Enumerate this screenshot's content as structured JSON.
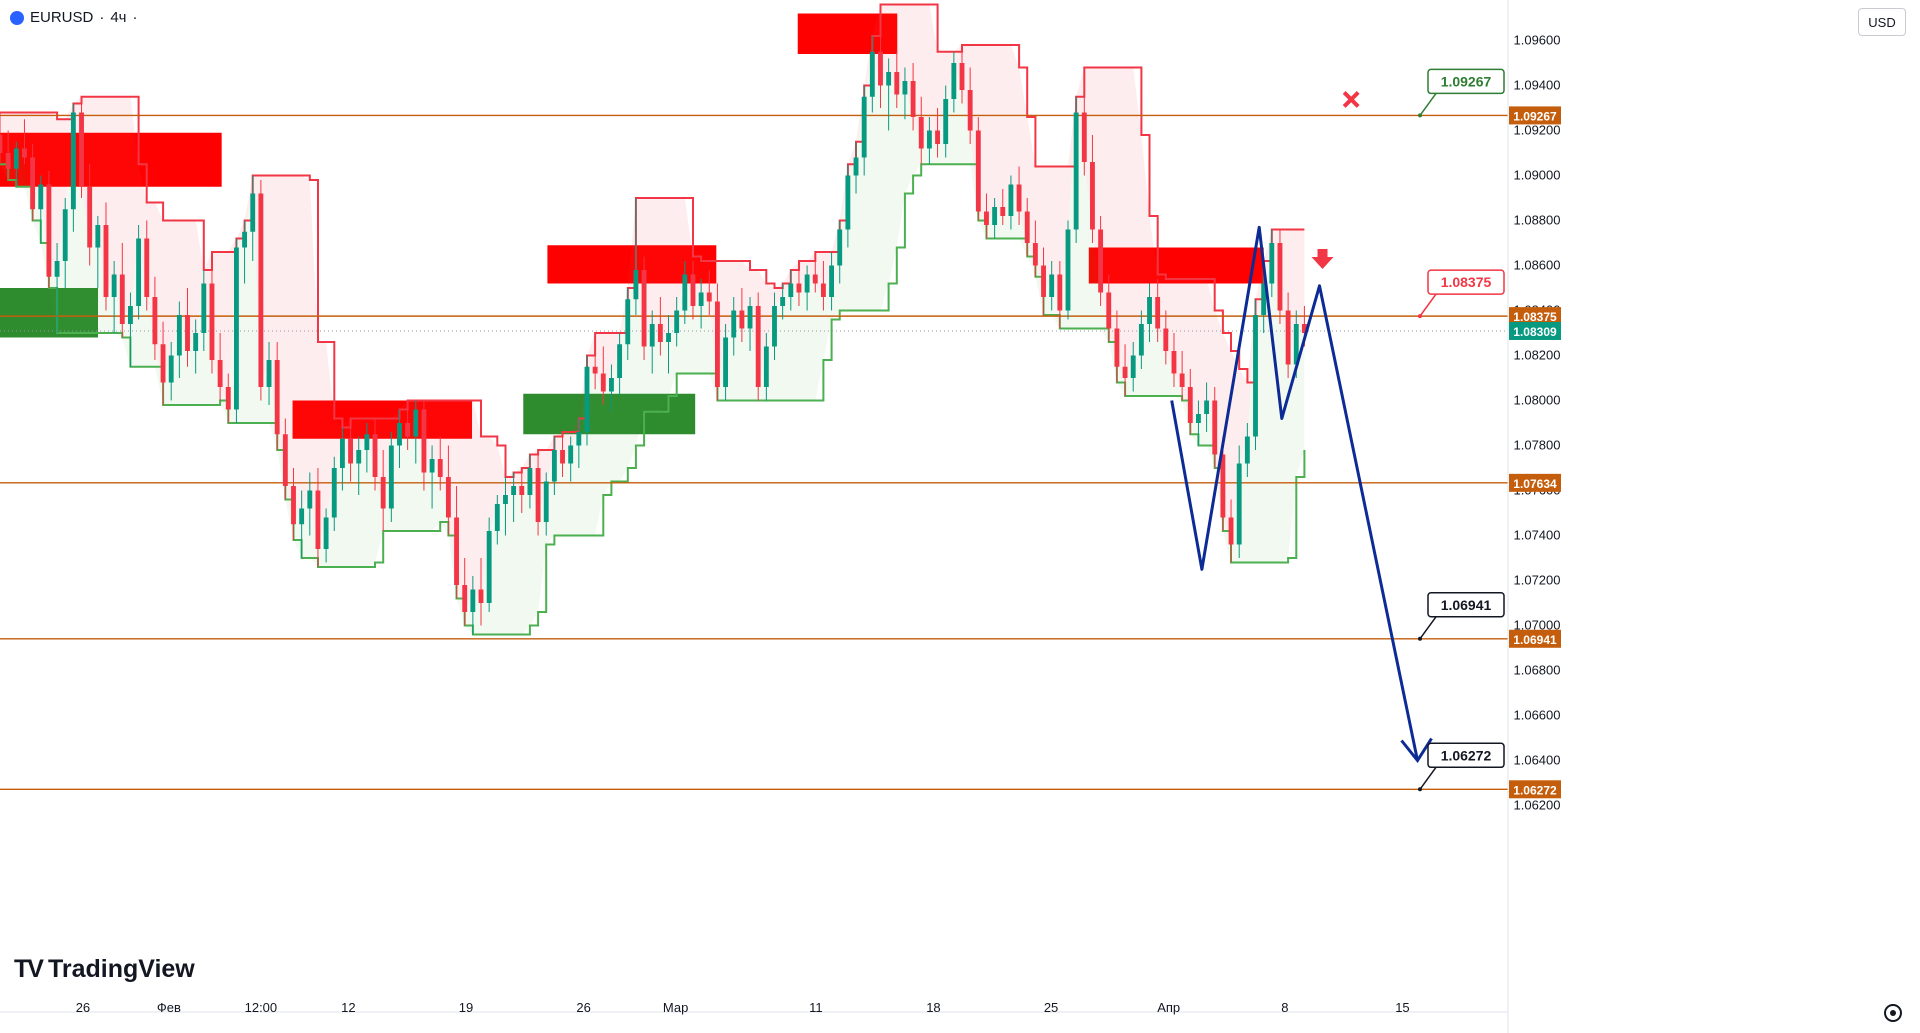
{
  "header": {
    "symbol": "EURUSD",
    "timeframe": "4ч",
    "currency": "USD"
  },
  "brand": {
    "logo_text": "TradingView"
  },
  "colors": {
    "price_line": "#c45e0c",
    "bear": "#f23645",
    "bull": "#089981",
    "path": "#0d2b95",
    "zone_red": "#ff0000",
    "zone_green": "#2e8b2e",
    "stop_line": "#f23645",
    "trail_line": "#4caf50"
  },
  "chart_data": {
    "type": "candlestick",
    "symbol": "EURUSD",
    "interval": "4ч",
    "ylim": [
      1.0618,
      1.0978
    ],
    "y_ticks": [
      "1.09600",
      "1.09400",
      "1.09200",
      "1.09000",
      "1.08800",
      "1.08600",
      "1.08400",
      "1.08200",
      "1.08000",
      "1.07800",
      "1.07600",
      "1.07400",
      "1.07200",
      "1.07000",
      "1.06800",
      "1.06600",
      "1.06400",
      "1.06200"
    ],
    "x_ticks": [
      {
        "label": "26",
        "t": 0.055
      },
      {
        "label": "Фев",
        "t": 0.112
      },
      {
        "label": "12:00",
        "t": 0.173
      },
      {
        "label": "12",
        "t": 0.231
      },
      {
        "label": "19",
        "t": 0.309
      },
      {
        "label": "26",
        "t": 0.387
      },
      {
        "label": "Мар",
        "t": 0.448
      },
      {
        "label": "11",
        "t": 0.541
      },
      {
        "label": "18",
        "t": 0.619
      },
      {
        "label": "25",
        "t": 0.697
      },
      {
        "label": "Апр",
        "t": 0.775
      },
      {
        "label": "8",
        "t": 0.852
      },
      {
        "label": "15",
        "t": 0.93
      }
    ],
    "price_levels": [
      {
        "value": 1.09267,
        "label": "1.09267",
        "callout": "1.09267",
        "callout_color": "#2e7d32"
      },
      {
        "value": 1.08375,
        "label": "1.08375",
        "callout": "1.08375",
        "callout_color": "#f23645"
      },
      {
        "value": 1.07634,
        "label": "1.07634",
        "callout": "",
        "callout_color": ""
      },
      {
        "value": 1.06941,
        "label": "1.06941",
        "callout": "1.06941",
        "callout_color": "#131722"
      },
      {
        "value": 1.06272,
        "label": "1.06272",
        "callout": "1.06272",
        "callout_color": "#131722"
      }
    ],
    "last_price": {
      "value": 1.08309,
      "label": "1.08309"
    },
    "path_points": [
      {
        "t": 0.777,
        "v": 1.08
      },
      {
        "t": 0.797,
        "v": 1.0725
      },
      {
        "t": 0.835,
        "v": 1.0877
      },
      {
        "t": 0.85,
        "v": 1.0792
      },
      {
        "t": 0.875,
        "v": 1.0851
      },
      {
        "t": 0.94,
        "v": 1.064
      }
    ],
    "supply_zones": [
      {
        "t0": 0.0,
        "t1": 0.147,
        "v0": 1.0895,
        "v1": 1.0919
      },
      {
        "t0": 0.194,
        "t1": 0.313,
        "v0": 1.0783,
        "v1": 1.08
      },
      {
        "t0": 0.363,
        "t1": 0.475,
        "v0": 1.0852,
        "v1": 1.0869
      },
      {
        "t0": 0.529,
        "t1": 0.595,
        "v0": 1.0954,
        "v1": 1.0972
      },
      {
        "t0": 0.722,
        "t1": 0.838,
        "v0": 1.0852,
        "v1": 1.0868
      }
    ],
    "demand_zones": [
      {
        "t0": 0.0,
        "t1": 0.065,
        "v0": 1.0828,
        "v1": 1.085
      },
      {
        "t0": 0.347,
        "t1": 0.461,
        "v0": 1.0785,
        "v1": 1.0803
      }
    ],
    "candles": [
      [
        1.0918,
        1.0928,
        1.0905,
        1.091
      ],
      [
        1.091,
        1.092,
        1.0898,
        1.0903
      ],
      [
        1.0903,
        1.0915,
        1.0895,
        1.0912
      ],
      [
        1.0912,
        1.0925,
        1.0905,
        1.0908
      ],
      [
        1.0908,
        1.0914,
        1.088,
        1.0885
      ],
      [
        1.0885,
        1.09,
        1.087,
        1.0896
      ],
      [
        1.0896,
        1.0902,
        1.085,
        1.0855
      ],
      [
        1.0855,
        1.087,
        1.083,
        1.0862
      ],
      [
        1.0862,
        1.089,
        1.085,
        1.0885
      ],
      [
        1.0885,
        1.0932,
        1.0875,
        1.0928
      ],
      [
        1.0928,
        1.0935,
        1.089,
        1.0895
      ],
      [
        1.0895,
        1.0905,
        1.086,
        1.0868
      ],
      [
        1.0868,
        1.0882,
        1.085,
        1.0878
      ],
      [
        1.0878,
        1.0888,
        1.084,
        1.0846
      ],
      [
        1.0846,
        1.0862,
        1.083,
        1.0856
      ],
      [
        1.0856,
        1.087,
        1.0828,
        1.0834
      ],
      [
        1.0834,
        1.0848,
        1.0815,
        1.0842
      ],
      [
        1.0842,
        1.0878,
        1.0836,
        1.0872
      ],
      [
        1.0872,
        1.088,
        1.084,
        1.0846
      ],
      [
        1.0846,
        1.0855,
        1.0818,
        1.0825
      ],
      [
        1.0825,
        1.0835,
        1.0798,
        1.0808
      ],
      [
        1.0808,
        1.0826,
        1.08,
        1.082
      ],
      [
        1.082,
        1.0844,
        1.081,
        1.0838
      ],
      [
        1.0838,
        1.085,
        1.0815,
        1.0822
      ],
      [
        1.0822,
        1.0836,
        1.0812,
        1.083
      ],
      [
        1.083,
        1.0858,
        1.0822,
        1.0852
      ],
      [
        1.0852,
        1.0866,
        1.0812,
        1.0818
      ],
      [
        1.0818,
        1.083,
        1.08,
        1.0806
      ],
      [
        1.0806,
        1.0812,
        1.079,
        1.0796
      ],
      [
        1.0796,
        1.0872,
        1.079,
        1.0868
      ],
      [
        1.0868,
        1.088,
        1.0852,
        1.0875
      ],
      [
        1.0875,
        1.09,
        1.0862,
        1.0892
      ],
      [
        1.0892,
        1.0898,
        1.08,
        1.0806
      ],
      [
        1.0806,
        1.0826,
        1.0798,
        1.0818
      ],
      [
        1.0818,
        1.0826,
        1.0778,
        1.0785
      ],
      [
        1.0785,
        1.0792,
        1.0756,
        1.0762
      ],
      [
        1.0762,
        1.077,
        1.0738,
        1.0745
      ],
      [
        1.0745,
        1.076,
        1.073,
        1.0752
      ],
      [
        1.0752,
        1.0768,
        1.074,
        1.076
      ],
      [
        1.076,
        1.077,
        1.0726,
        1.0734
      ],
      [
        1.0734,
        1.0752,
        1.0728,
        1.0748
      ],
      [
        1.0748,
        1.0775,
        1.0742,
        1.077
      ],
      [
        1.077,
        1.0788,
        1.076,
        1.0783
      ],
      [
        1.0783,
        1.0792,
        1.0764,
        1.0772
      ],
      [
        1.0772,
        1.0784,
        1.0758,
        1.0778
      ],
      [
        1.0778,
        1.079,
        1.0768,
        1.0785
      ],
      [
        1.0785,
        1.0792,
        1.076,
        1.0766
      ],
      [
        1.0766,
        1.0778,
        1.0742,
        1.0752
      ],
      [
        1.0752,
        1.0786,
        1.0746,
        1.078
      ],
      [
        1.078,
        1.0796,
        1.077,
        1.079
      ],
      [
        1.079,
        1.08,
        1.0778,
        1.0784
      ],
      [
        1.0784,
        1.08,
        1.0772,
        1.0796
      ],
      [
        1.0796,
        1.08,
        1.076,
        1.0768
      ],
      [
        1.0768,
        1.078,
        1.0752,
        1.0774
      ],
      [
        1.0774,
        1.0784,
        1.076,
        1.0766
      ],
      [
        1.0766,
        1.078,
        1.074,
        1.0748
      ],
      [
        1.0748,
        1.0762,
        1.0712,
        1.0718
      ],
      [
        1.0718,
        1.073,
        1.07,
        1.0706
      ],
      [
        1.0706,
        1.0722,
        1.0696,
        1.0716
      ],
      [
        1.0716,
        1.073,
        1.07,
        1.071
      ],
      [
        1.071,
        1.0748,
        1.0706,
        1.0742
      ],
      [
        1.0742,
        1.0758,
        1.0736,
        1.0754
      ],
      [
        1.0754,
        1.0766,
        1.074,
        1.0758
      ],
      [
        1.0758,
        1.0768,
        1.0746,
        1.0762
      ],
      [
        1.0762,
        1.077,
        1.075,
        1.0758
      ],
      [
        1.0758,
        1.0776,
        1.0752,
        1.077
      ],
      [
        1.077,
        1.0778,
        1.074,
        1.0746
      ],
      [
        1.0746,
        1.0768,
        1.074,
        1.0764
      ],
      [
        1.0764,
        1.0784,
        1.0758,
        1.0778
      ],
      [
        1.0778,
        1.0786,
        1.0766,
        1.0772
      ],
      [
        1.0772,
        1.0784,
        1.0764,
        1.078
      ],
      [
        1.078,
        1.0792,
        1.077,
        1.0786
      ],
      [
        1.0786,
        1.082,
        1.078,
        1.0815
      ],
      [
        1.0815,
        1.083,
        1.0805,
        1.0812
      ],
      [
        1.0812,
        1.0824,
        1.0798,
        1.0804
      ],
      [
        1.0804,
        1.0816,
        1.0795,
        1.081
      ],
      [
        1.081,
        1.083,
        1.0802,
        1.0825
      ],
      [
        1.0825,
        1.085,
        1.0818,
        1.0845
      ],
      [
        1.0845,
        1.089,
        1.0838,
        1.0858
      ],
      [
        1.0858,
        1.0864,
        1.0818,
        1.0824
      ],
      [
        1.0824,
        1.084,
        1.0812,
        1.0834
      ],
      [
        1.0834,
        1.0846,
        1.082,
        1.0826
      ],
      [
        1.0826,
        1.0838,
        1.0812,
        1.083
      ],
      [
        1.083,
        1.0846,
        1.0824,
        1.084
      ],
      [
        1.084,
        1.0862,
        1.0834,
        1.0856
      ],
      [
        1.0856,
        1.0862,
        1.0836,
        1.0842
      ],
      [
        1.0842,
        1.0854,
        1.0832,
        1.0848
      ],
      [
        1.0848,
        1.0858,
        1.0838,
        1.0844
      ],
      [
        1.0844,
        1.0852,
        1.08,
        1.0806
      ],
      [
        1.0806,
        1.0834,
        1.08,
        1.0828
      ],
      [
        1.0828,
        1.0846,
        1.082,
        1.084
      ],
      [
        1.084,
        1.085,
        1.0826,
        1.0832
      ],
      [
        1.0832,
        1.0846,
        1.0822,
        1.0842
      ],
      [
        1.0842,
        1.0848,
        1.08,
        1.0806
      ],
      [
        1.0806,
        1.083,
        1.08,
        1.0824
      ],
      [
        1.0824,
        1.0848,
        1.0818,
        1.0842
      ],
      [
        1.0842,
        1.0852,
        1.0836,
        1.0846
      ],
      [
        1.0846,
        1.0858,
        1.084,
        1.0852
      ],
      [
        1.0852,
        1.0862,
        1.0842,
        1.0848
      ],
      [
        1.0848,
        1.086,
        1.084,
        1.0856
      ],
      [
        1.0856,
        1.0866,
        1.0848,
        1.0852
      ],
      [
        1.0852,
        1.0862,
        1.084,
        1.0846
      ],
      [
        1.0846,
        1.0866,
        1.084,
        1.086
      ],
      [
        1.086,
        1.088,
        1.0852,
        1.0876
      ],
      [
        1.0876,
        1.0905,
        1.0868,
        1.09
      ],
      [
        1.09,
        1.0915,
        1.0892,
        1.0908
      ],
      [
        1.0908,
        1.094,
        1.09,
        1.0935
      ],
      [
        1.0935,
        1.0962,
        1.0928,
        1.0955
      ],
      [
        1.0955,
        1.0976,
        1.093,
        1.094
      ],
      [
        1.094,
        1.0952,
        1.092,
        1.0946
      ],
      [
        1.0946,
        1.0955,
        1.093,
        1.0936
      ],
      [
        1.0936,
        1.0948,
        1.0925,
        1.0942
      ],
      [
        1.0942,
        1.095,
        1.092,
        1.0926
      ],
      [
        1.0926,
        1.0935,
        1.0905,
        1.0912
      ],
      [
        1.0912,
        1.0926,
        1.0905,
        1.092
      ],
      [
        1.092,
        1.093,
        1.0908,
        1.0914
      ],
      [
        1.0914,
        1.094,
        1.0908,
        1.0934
      ],
      [
        1.0934,
        1.0955,
        1.0928,
        1.095
      ],
      [
        1.095,
        1.0958,
        1.0932,
        1.0938
      ],
      [
        1.0938,
        1.0948,
        1.0914,
        1.092
      ],
      [
        1.092,
        1.0926,
        1.088,
        1.0884
      ],
      [
        1.0884,
        1.0892,
        1.0872,
        1.0878
      ],
      [
        1.0878,
        1.089,
        1.0872,
        1.0886
      ],
      [
        1.0886,
        1.0894,
        1.0878,
        1.0882
      ],
      [
        1.0882,
        1.09,
        1.0876,
        1.0896
      ],
      [
        1.0896,
        1.0904,
        1.0878,
        1.0884
      ],
      [
        1.0884,
        1.089,
        1.0864,
        1.087
      ],
      [
        1.087,
        1.088,
        1.0855,
        1.086
      ],
      [
        1.086,
        1.0868,
        1.0838,
        1.0846
      ],
      [
        1.0846,
        1.0862,
        1.084,
        1.0856
      ],
      [
        1.0856,
        1.0862,
        1.0832,
        1.084
      ],
      [
        1.084,
        1.088,
        1.0836,
        1.0876
      ],
      [
        1.0876,
        1.0935,
        1.087,
        1.0928
      ],
      [
        1.0928,
        1.0948,
        1.09,
        1.0906
      ],
      [
        1.0906,
        1.0918,
        1.087,
        1.0876
      ],
      [
        1.0876,
        1.0882,
        1.0842,
        1.0848
      ],
      [
        1.0848,
        1.0856,
        1.0826,
        1.0832
      ],
      [
        1.0832,
        1.084,
        1.0808,
        1.0815
      ],
      [
        1.0815,
        1.0825,
        1.0802,
        1.081
      ],
      [
        1.081,
        1.0826,
        1.0804,
        1.082
      ],
      [
        1.082,
        1.084,
        1.0814,
        1.0834
      ],
      [
        1.0834,
        1.0852,
        1.0826,
        1.0846
      ],
      [
        1.0846,
        1.0854,
        1.0826,
        1.0832
      ],
      [
        1.0832,
        1.084,
        1.0816,
        1.0822
      ],
      [
        1.0822,
        1.083,
        1.0806,
        1.0812
      ],
      [
        1.0812,
        1.0822,
        1.08,
        1.0806
      ],
      [
        1.0806,
        1.0814,
        1.0785,
        1.079
      ],
      [
        1.079,
        1.08,
        1.078,
        1.0794
      ],
      [
        1.0794,
        1.0808,
        1.0786,
        1.08
      ],
      [
        1.08,
        1.0806,
        1.077,
        1.0776
      ],
      [
        1.0776,
        1.0784,
        1.0742,
        1.0748
      ],
      [
        1.0748,
        1.0756,
        1.0728,
        1.0736
      ],
      [
        1.0736,
        1.078,
        1.073,
        1.0772
      ],
      [
        1.0772,
        1.079,
        1.0766,
        1.0784
      ],
      [
        1.0784,
        1.0845,
        1.0778,
        1.0838
      ],
      [
        1.0838,
        1.0862,
        1.083,
        1.0852
      ],
      [
        1.0852,
        1.0876,
        1.0846,
        1.087
      ],
      [
        1.087,
        1.0876,
        1.0834,
        1.084
      ],
      [
        1.084,
        1.0848,
        1.081,
        1.0816
      ],
      [
        1.0816,
        1.084,
        1.081,
        1.0834
      ],
      [
        1.0834,
        1.0842,
        1.0824,
        1.083
      ]
    ]
  }
}
